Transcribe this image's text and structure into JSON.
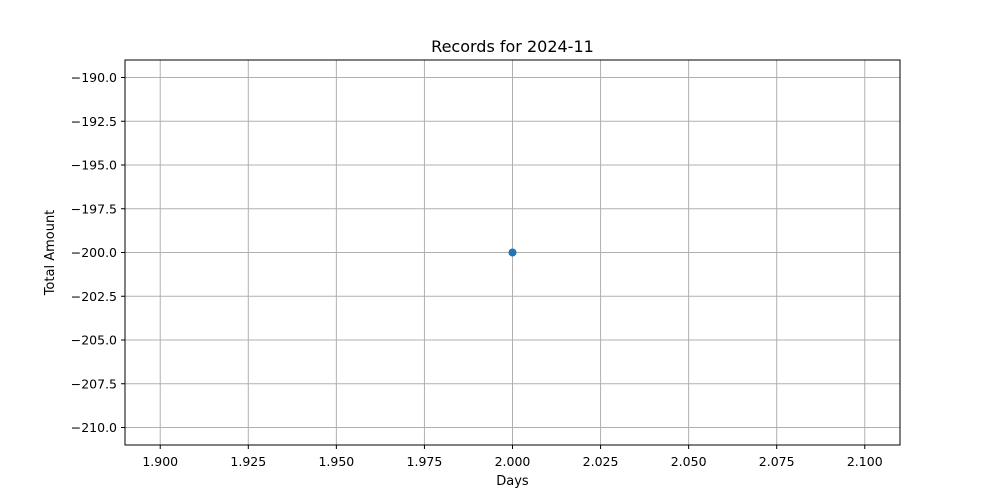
{
  "chart_data": {
    "type": "scatter",
    "title": "Records for 2024-11",
    "xlabel": "Days",
    "ylabel": "Total Amount",
    "xlim": [
      1.89,
      2.11
    ],
    "ylim": [
      -211.0,
      -189.0
    ],
    "x_ticks": [
      1.9,
      1.925,
      1.95,
      1.975,
      2.0,
      2.025,
      2.05,
      2.075,
      2.1
    ],
    "x_tick_labels": [
      "1.900",
      "1.925",
      "1.950",
      "1.975",
      "2.000",
      "2.025",
      "2.050",
      "2.075",
      "2.100"
    ],
    "y_ticks": [
      -190.0,
      -192.5,
      -195.0,
      -197.5,
      -200.0,
      -202.5,
      -205.0,
      -207.5,
      -210.0
    ],
    "y_tick_labels": [
      "−190.0",
      "−192.5",
      "−195.0",
      "−197.5",
      "−200.0",
      "−202.5",
      "−205.0",
      "−207.5",
      "−210.0"
    ],
    "grid": true,
    "series": [
      {
        "color": "#1f77b4",
        "x": [
          2.0
        ],
        "y": [
          -200.0
        ]
      }
    ]
  }
}
